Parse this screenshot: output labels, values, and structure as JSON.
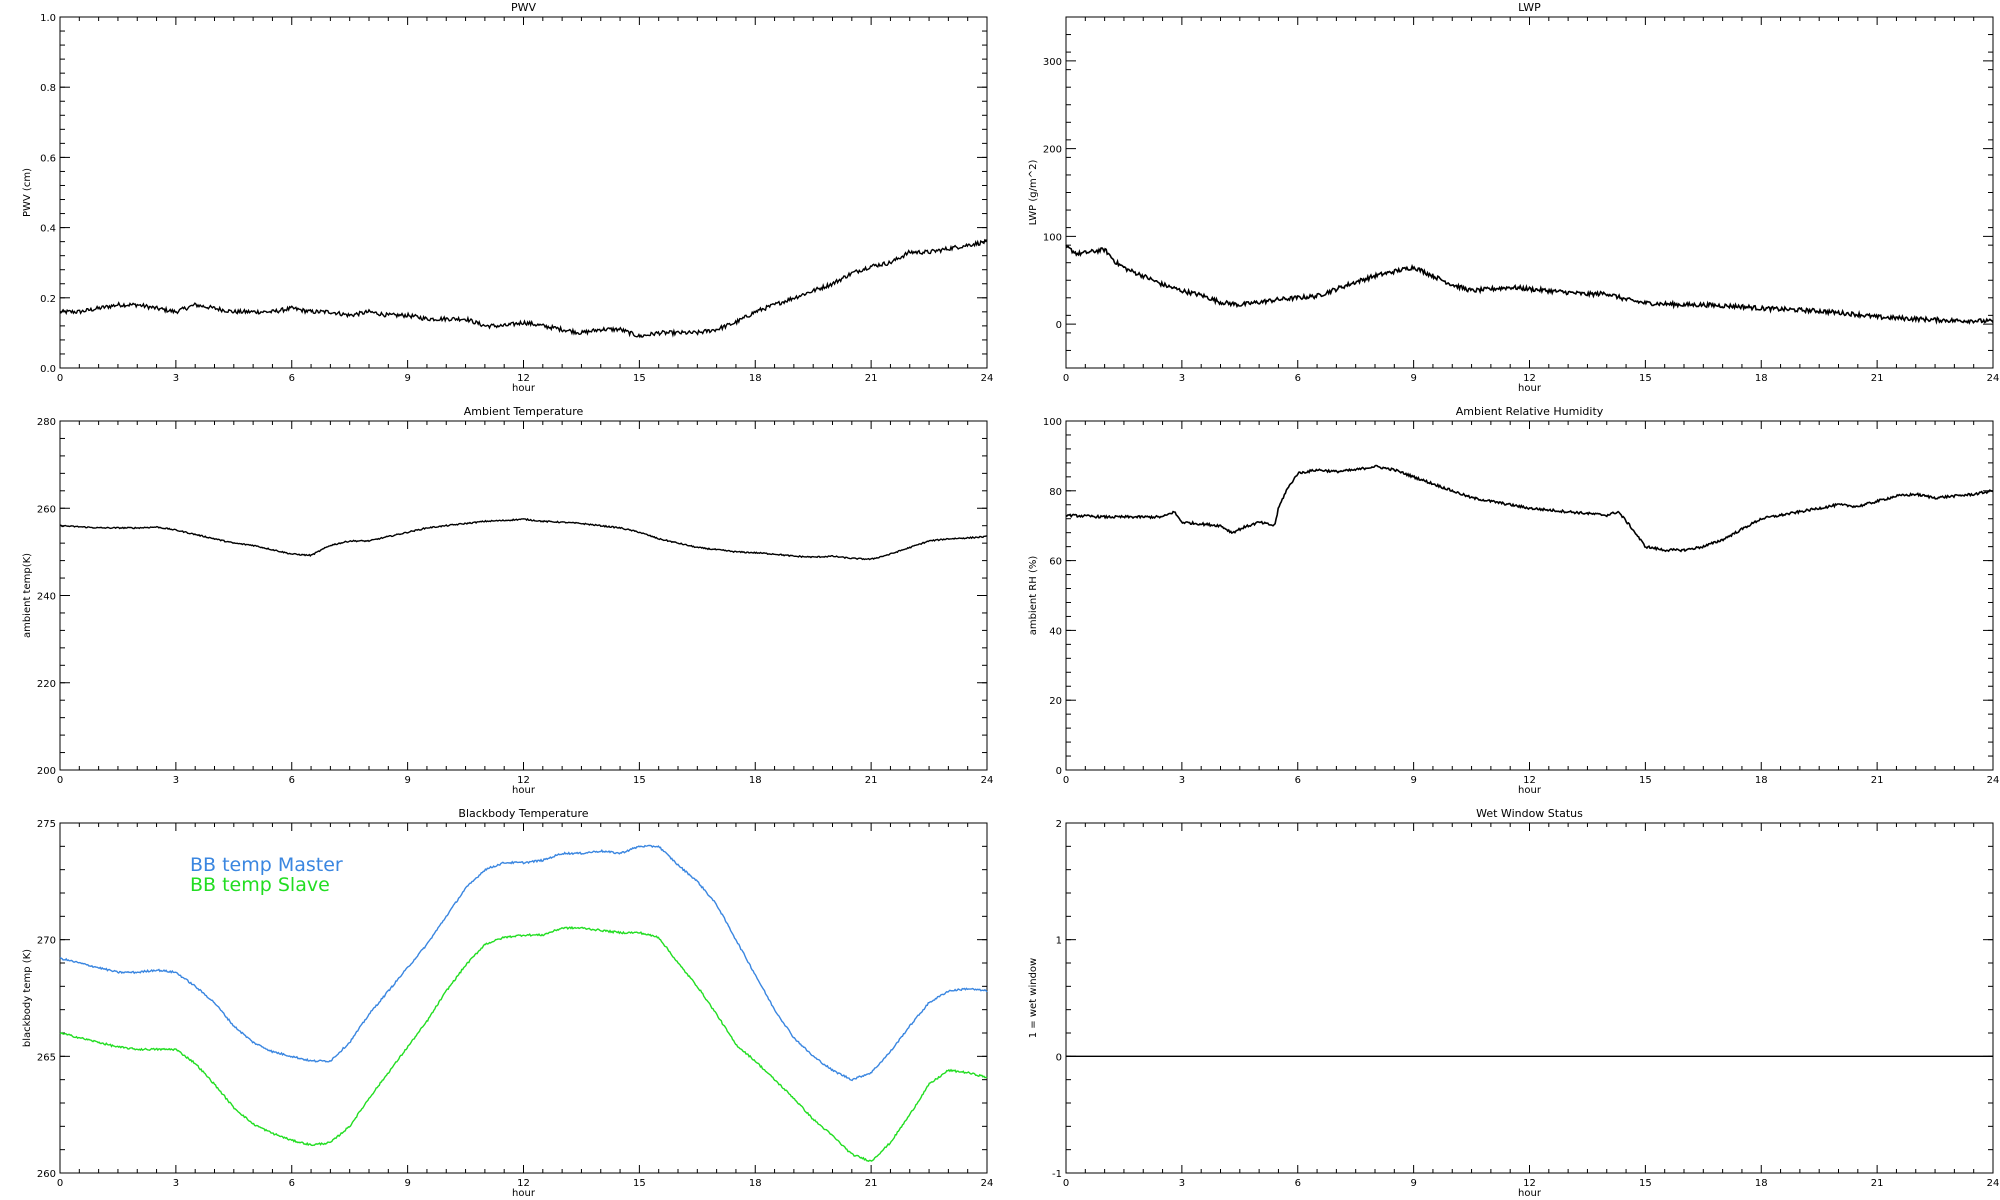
{
  "chart_data": [
    {
      "type": "line",
      "title": "PWV",
      "xlabel": "hour",
      "ylabel": "PWV (cm)",
      "xlim": [
        0,
        24
      ],
      "ylim": [
        0.0,
        1.0
      ],
      "xticks": [
        "0",
        "3",
        "6",
        "9",
        "12",
        "15",
        "18",
        "21",
        "24"
      ],
      "yticks": [
        "0.0",
        "0.2",
        "0.4",
        "0.6",
        "0.8",
        "1.0"
      ],
      "series": [
        {
          "color": "#000000",
          "noise": 0.006,
          "x": [
            0,
            0.5,
            1,
            1.5,
            2,
            2.5,
            3,
            3.5,
            4,
            4.5,
            5,
            5.5,
            6,
            6.5,
            7,
            7.5,
            8,
            8.5,
            9,
            9.5,
            10,
            10.5,
            11,
            11.5,
            12,
            12.5,
            13,
            13.5,
            14,
            14.5,
            15,
            15.5,
            16,
            16.5,
            17,
            17.5,
            18,
            18.5,
            19,
            19.5,
            20,
            20.5,
            21,
            21.5,
            22,
            22.5,
            23,
            23.5,
            24
          ],
          "values": [
            0.16,
            0.16,
            0.17,
            0.18,
            0.18,
            0.17,
            0.16,
            0.18,
            0.17,
            0.16,
            0.16,
            0.16,
            0.17,
            0.16,
            0.16,
            0.15,
            0.16,
            0.15,
            0.15,
            0.14,
            0.14,
            0.14,
            0.12,
            0.12,
            0.13,
            0.12,
            0.11,
            0.1,
            0.11,
            0.11,
            0.09,
            0.1,
            0.1,
            0.1,
            0.11,
            0.13,
            0.16,
            0.18,
            0.2,
            0.22,
            0.24,
            0.27,
            0.29,
            0.3,
            0.33,
            0.33,
            0.34,
            0.35,
            0.36
          ]
        }
      ]
    },
    {
      "type": "line",
      "title": "LWP",
      "xlabel": "hour",
      "ylabel": "LWP (g/m^2)",
      "xlim": [
        0,
        24
      ],
      "ylim": [
        -50,
        350
      ],
      "xticks": [
        "0",
        "3",
        "6",
        "9",
        "12",
        "15",
        "18",
        "21",
        "24"
      ],
      "yticks": [
        "0",
        "100",
        "200",
        "300"
      ],
      "series": [
        {
          "color": "#000000",
          "noise": 2.5,
          "x": [
            0,
            0.3,
            0.6,
            1,
            1.3,
            1.6,
            2,
            2.5,
            3,
            3.5,
            4,
            4.5,
            5,
            5.5,
            6,
            6.5,
            7,
            7.5,
            8,
            8.5,
            9,
            9.5,
            10,
            10.5,
            11,
            11.5,
            12,
            12.5,
            13,
            13.5,
            14,
            14.5,
            15,
            15.5,
            16,
            16.5,
            17,
            17.5,
            18,
            18.5,
            19,
            19.5,
            20,
            20.5,
            21,
            21.5,
            22,
            22.5,
            23,
            23.5,
            24
          ],
          "values": [
            88,
            80,
            82,
            85,
            70,
            62,
            55,
            45,
            38,
            33,
            25,
            22,
            25,
            28,
            30,
            32,
            40,
            48,
            55,
            60,
            65,
            55,
            45,
            38,
            40,
            42,
            40,
            38,
            36,
            34,
            35,
            28,
            24,
            23,
            22,
            22,
            21,
            20,
            18,
            17,
            16,
            15,
            13,
            11,
            8,
            7,
            6,
            5,
            4,
            4,
            3
          ]
        }
      ]
    },
    {
      "type": "line",
      "title": "Ambient Temperature",
      "xlabel": "hour",
      "ylabel": "ambient temp(K)",
      "xlim": [
        0,
        24
      ],
      "ylim": [
        200,
        280
      ],
      "xticks": [
        "0",
        "3",
        "6",
        "9",
        "12",
        "15",
        "18",
        "21",
        "24"
      ],
      "yticks": [
        "200",
        "220",
        "240",
        "260",
        "280"
      ],
      "series": [
        {
          "color": "#000000",
          "noise": 0.15,
          "x": [
            0,
            1,
            2,
            2.5,
            3,
            3.5,
            4,
            4.5,
            5,
            5.5,
            6,
            6.5,
            7,
            7.5,
            8,
            8.5,
            9,
            9.5,
            10,
            10.5,
            11,
            11.5,
            12,
            12.5,
            13,
            13.5,
            14,
            14.5,
            15,
            15.5,
            16,
            16.5,
            17,
            17.5,
            18,
            18.5,
            19,
            19.5,
            20,
            20.5,
            21,
            21.5,
            22,
            22.5,
            23,
            23.5,
            24
          ],
          "values": [
            256,
            255.5,
            255.5,
            255.7,
            255,
            254,
            253,
            252,
            251.5,
            250.5,
            249.5,
            249.2,
            251.5,
            252.5,
            252.5,
            253.5,
            254.5,
            255.5,
            256,
            256.5,
            257,
            257.2,
            257.5,
            257,
            256.8,
            256.5,
            256,
            255.5,
            254.5,
            253,
            252,
            251,
            250.5,
            250,
            249.8,
            249.5,
            249,
            248.8,
            249,
            248.5,
            248.3,
            249.5,
            251,
            252.5,
            253,
            253.2,
            253.5
          ]
        }
      ]
    },
    {
      "type": "line",
      "title": "Ambient Relative Humidity",
      "xlabel": "hour",
      "ylabel": "ambient RH (%)",
      "xlim": [
        0,
        24
      ],
      "ylim": [
        0,
        100
      ],
      "xticks": [
        "0",
        "3",
        "6",
        "9",
        "12",
        "15",
        "18",
        "21",
        "24"
      ],
      "yticks": [
        "0",
        "20",
        "40",
        "60",
        "80",
        "100"
      ],
      "series": [
        {
          "color": "#000000",
          "noise": 0.35,
          "x": [
            0,
            1,
            2,
            2.5,
            2.8,
            3,
            3.5,
            4,
            4.3,
            4.6,
            5,
            5.4,
            5.5,
            5.7,
            6,
            6.5,
            7,
            7.5,
            8,
            8.5,
            9,
            9.5,
            10,
            10.5,
            11,
            11.5,
            12,
            12.5,
            13,
            13.5,
            14,
            14.3,
            14.6,
            15,
            15.5,
            16,
            16.5,
            17,
            17.5,
            18,
            18.5,
            19,
            19.5,
            20,
            20.5,
            21,
            21.5,
            22,
            22.5,
            23,
            23.5,
            24
          ],
          "values": [
            73,
            72.5,
            72.5,
            72.5,
            74,
            71,
            70.5,
            70,
            68,
            69.5,
            71,
            70,
            75,
            80,
            85,
            86,
            85.5,
            86,
            87,
            86,
            84,
            82,
            80,
            78,
            77,
            76,
            75,
            74.5,
            74,
            73.5,
            73,
            74,
            70,
            64,
            63,
            63,
            64,
            66,
            69,
            72,
            73,
            74,
            75,
            76,
            75.5,
            77,
            78.5,
            79,
            78,
            78.5,
            79,
            80
          ]
        }
      ]
    },
    {
      "type": "line",
      "title": "Blackbody Temperature",
      "xlabel": "hour",
      "ylabel": "blackbody temp (K)",
      "xlim": [
        0,
        24
      ],
      "ylim": [
        260,
        275
      ],
      "xticks": [
        "0",
        "3",
        "6",
        "9",
        "12",
        "15",
        "18",
        "21",
        "24"
      ],
      "yticks": [
        "260",
        "265",
        "270",
        "275"
      ],
      "legend": "top-left",
      "series": [
        {
          "name": "BB temp Master",
          "color": "#3a86e0",
          "noise": 0.04,
          "x": [
            0,
            0.5,
            1,
            1.5,
            2,
            2.5,
            3,
            3.5,
            4,
            4.5,
            5,
            5.5,
            6,
            6.5,
            7,
            7.5,
            8,
            8.5,
            9,
            9.5,
            10,
            10.5,
            11,
            11.5,
            12,
            12.5,
            13,
            13.5,
            14,
            14.5,
            15,
            15.5,
            16,
            16.5,
            17,
            17.5,
            18,
            18.5,
            19,
            19.5,
            20,
            20.5,
            21,
            21.5,
            22,
            22.5,
            23,
            23.5,
            24
          ],
          "values": [
            269.2,
            269,
            268.8,
            268.6,
            268.6,
            268.7,
            268.6,
            268,
            267.3,
            266.3,
            265.6,
            265.2,
            265,
            264.8,
            264.8,
            265.6,
            266.8,
            267.8,
            268.8,
            269.8,
            271,
            272.2,
            273,
            273.3,
            273.3,
            273.4,
            273.7,
            273.7,
            273.8,
            273.7,
            274,
            274,
            273.2,
            272.5,
            271.5,
            270,
            268.5,
            267,
            265.8,
            265,
            264.4,
            264,
            264.3,
            265.2,
            266.3,
            267.3,
            267.8,
            267.9,
            267.8
          ]
        },
        {
          "name": "BB temp Slave",
          "color": "#22dd22",
          "noise": 0.04,
          "x": [
            0,
            0.5,
            1,
            1.5,
            2,
            2.5,
            3,
            3.5,
            4,
            4.5,
            5,
            5.5,
            6,
            6.5,
            7,
            7.5,
            8,
            8.5,
            9,
            9.5,
            10,
            10.5,
            11,
            11.5,
            12,
            12.5,
            13,
            13.5,
            14,
            14.5,
            15,
            15.5,
            16,
            16.5,
            17,
            17.5,
            18,
            18.5,
            19,
            19.5,
            20,
            20.5,
            21,
            21.5,
            22,
            22.5,
            23,
            23.5,
            24
          ],
          "values": [
            266,
            265.8,
            265.6,
            265.4,
            265.3,
            265.3,
            265.3,
            264.7,
            263.8,
            262.8,
            262.1,
            261.7,
            261.4,
            261.2,
            261.3,
            262,
            263.2,
            264.3,
            265.4,
            266.5,
            267.8,
            268.9,
            269.8,
            270.1,
            270.2,
            270.2,
            270.5,
            270.5,
            270.4,
            270.3,
            270.3,
            270.1,
            269,
            268,
            266.8,
            265.5,
            264.8,
            264,
            263.2,
            262.3,
            261.6,
            260.8,
            260.5,
            261.3,
            262.5,
            263.8,
            264.4,
            264.3,
            264.1
          ]
        }
      ]
    },
    {
      "type": "line",
      "title": "Wet Window Status",
      "xlabel": "hour",
      "ylabel": "1 = wet window",
      "xlim": [
        0,
        24
      ],
      "ylim": [
        -1,
        2
      ],
      "xticks": [
        "0",
        "3",
        "6",
        "9",
        "12",
        "15",
        "18",
        "21",
        "24"
      ],
      "yticks": [
        "-1",
        "0",
        "1",
        "2"
      ],
      "series": [
        {
          "color": "#000000",
          "noise": 0,
          "x": [
            0,
            24
          ],
          "values": [
            0,
            0
          ]
        }
      ]
    }
  ]
}
